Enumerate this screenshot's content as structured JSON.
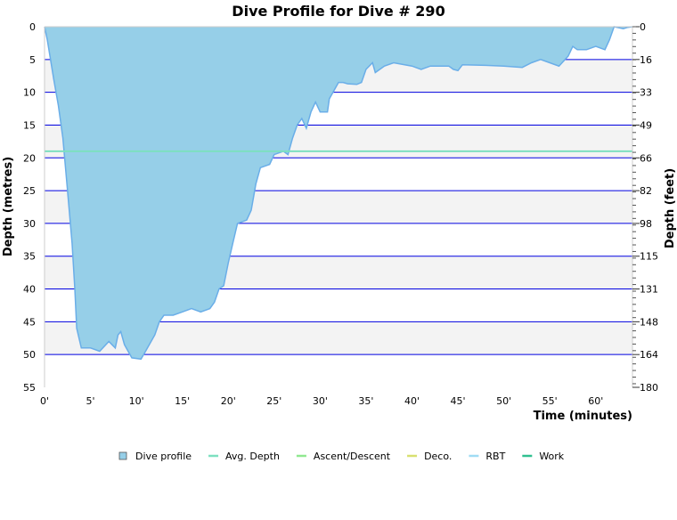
{
  "chart_data": {
    "type": "area",
    "title": "Dive Profile for Dive # 290",
    "xlabel": "Time (minutes)",
    "ylabel": "Depth (metres)",
    "y2label": "Depth (feet)",
    "xlim": [
      0,
      64
    ],
    "ylim": [
      0,
      55
    ],
    "y_inverted": true,
    "x_ticks": [
      "0'",
      "5'",
      "10'",
      "15'",
      "20'",
      "25'",
      "30'",
      "35'",
      "40'",
      "45'",
      "50'",
      "55'",
      "60'"
    ],
    "y_ticks": [
      0,
      5,
      10,
      15,
      20,
      25,
      30,
      35,
      40,
      45,
      50,
      55
    ],
    "y2_ticks": [
      0,
      16,
      33,
      49,
      66,
      82,
      98,
      115,
      131,
      148,
      164,
      180
    ],
    "grid": true,
    "legend_position": "bottom",
    "legend": [
      {
        "name": "Dive profile",
        "color": "#96cfe8",
        "shape": "box"
      },
      {
        "name": "Avg. Depth",
        "color": "#7de0c0",
        "shape": "line"
      },
      {
        "name": "Ascent/Descent",
        "color": "#90e890",
        "shape": "line"
      },
      {
        "name": "Deco.",
        "color": "#d8e070",
        "shape": "line"
      },
      {
        "name": "RBT",
        "color": "#a0dcf4",
        "shape": "line"
      },
      {
        "name": "Work",
        "color": "#30c090",
        "shape": "line"
      }
    ],
    "avg_depth": 19,
    "series": [
      {
        "name": "Dive profile",
        "time": [
          0,
          0.3,
          1,
          1.5,
          2,
          2.5,
          3,
          3.3,
          3.5,
          4,
          5,
          6,
          7,
          7.7,
          8,
          8.3,
          8.7,
          9.5,
          10.5,
          11,
          12,
          12.5,
          13,
          14,
          15,
          16,
          17,
          18,
          18.5,
          19,
          19.5,
          20,
          20.5,
          21,
          22,
          22.5,
          23,
          23.5,
          24.5,
          25,
          26,
          26.5,
          27,
          27.5,
          28,
          28.5,
          29,
          29.5,
          30,
          30.8,
          31,
          32,
          32.5,
          33,
          34,
          34.5,
          35,
          35.7,
          36,
          37,
          38,
          40,
          41,
          42,
          44,
          44.5,
          45,
          45.5,
          48,
          50,
          52,
          53,
          54,
          55,
          56,
          57,
          57.5,
          58,
          59,
          60,
          61,
          61.5,
          62,
          63,
          63.5,
          64
        ],
        "depth": [
          0,
          2,
          8,
          12,
          17,
          25,
          33,
          40,
          46,
          49,
          49,
          49.5,
          48,
          49,
          47,
          46.5,
          48.5,
          50.5,
          50.7,
          49.5,
          47,
          45,
          44,
          44,
          43.5,
          43,
          43.5,
          43,
          42,
          40,
          39.5,
          36,
          33,
          30,
          29.5,
          28,
          24,
          21.5,
          21,
          19.5,
          19,
          19.5,
          17,
          15,
          14,
          15.5,
          13,
          11.5,
          13,
          13,
          11,
          8.5,
          8.5,
          8.7,
          8.8,
          8.5,
          6.5,
          5.5,
          7,
          6,
          5.5,
          6,
          6.5,
          6,
          6,
          6.5,
          6.7,
          5.8,
          5.9,
          6,
          6.2,
          5.5,
          5,
          5.5,
          6,
          4.5,
          3,
          3.5,
          3.5,
          3,
          3.5,
          2,
          0,
          0.3,
          0.1,
          0
        ]
      }
    ],
    "colors": {
      "profile_fill": "#96cfe8",
      "profile_line": "#6aaee8",
      "grid_line": "#0000e0",
      "band": "#f3f3f3",
      "avg_line": "#7de0c0"
    }
  }
}
